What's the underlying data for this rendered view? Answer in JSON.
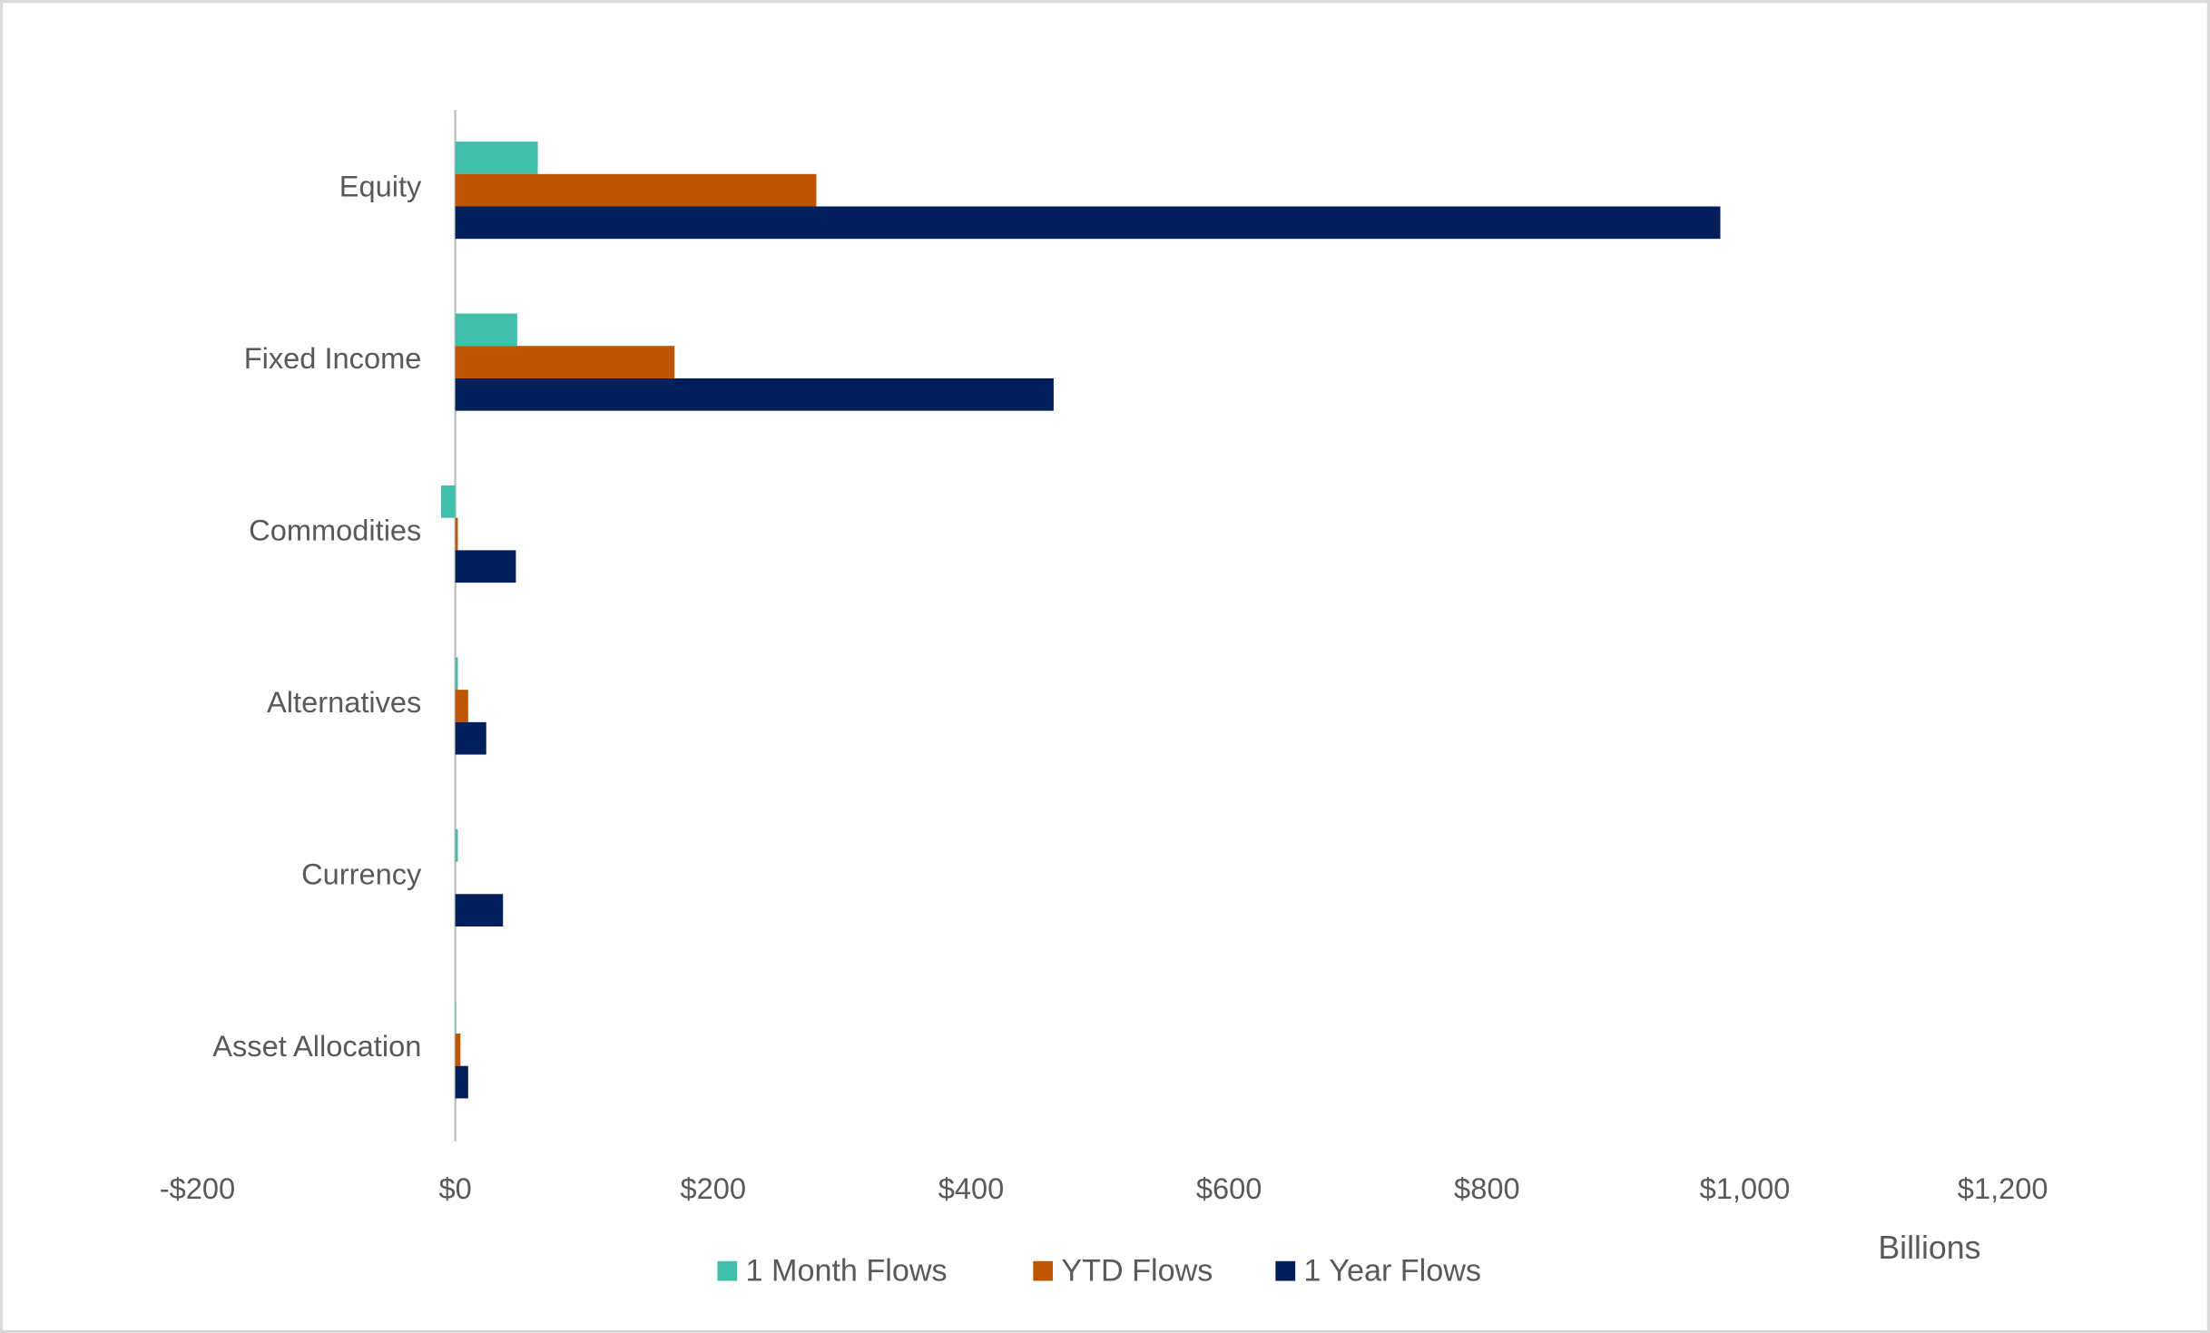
{
  "chart_data": {
    "type": "hbar",
    "categories": [
      "Equity",
      "Fixed Income",
      "Commodities",
      "Alternatives",
      "Currency",
      "Asset Allocation"
    ],
    "series": [
      {
        "name": "1 Month Flows",
        "color": "#40c0aa",
        "values": [
          64,
          48,
          -11,
          2,
          2,
          0.5
        ]
      },
      {
        "name": "YTD Flows",
        "color": "#c05500",
        "values": [
          280,
          170,
          2,
          10,
          0,
          4
        ]
      },
      {
        "name": "1 Year Flows",
        "color": "#001f5b",
        "values": [
          981,
          464,
          47,
          24,
          37,
          10
        ]
      }
    ],
    "xlabel": "Billions",
    "xlim": [
      -200,
      1200
    ],
    "xticks": [
      {
        "value": -200,
        "label": "-$200"
      },
      {
        "value": 0,
        "label": "$0"
      },
      {
        "value": 200,
        "label": "$200"
      },
      {
        "value": 400,
        "label": "$400"
      },
      {
        "value": 600,
        "label": "$600"
      },
      {
        "value": 800,
        "label": "$800"
      },
      {
        "value": 1000,
        "label": "$1,000"
      },
      {
        "value": 1200,
        "label": "$1,200"
      }
    ],
    "legend": "bottom"
  }
}
